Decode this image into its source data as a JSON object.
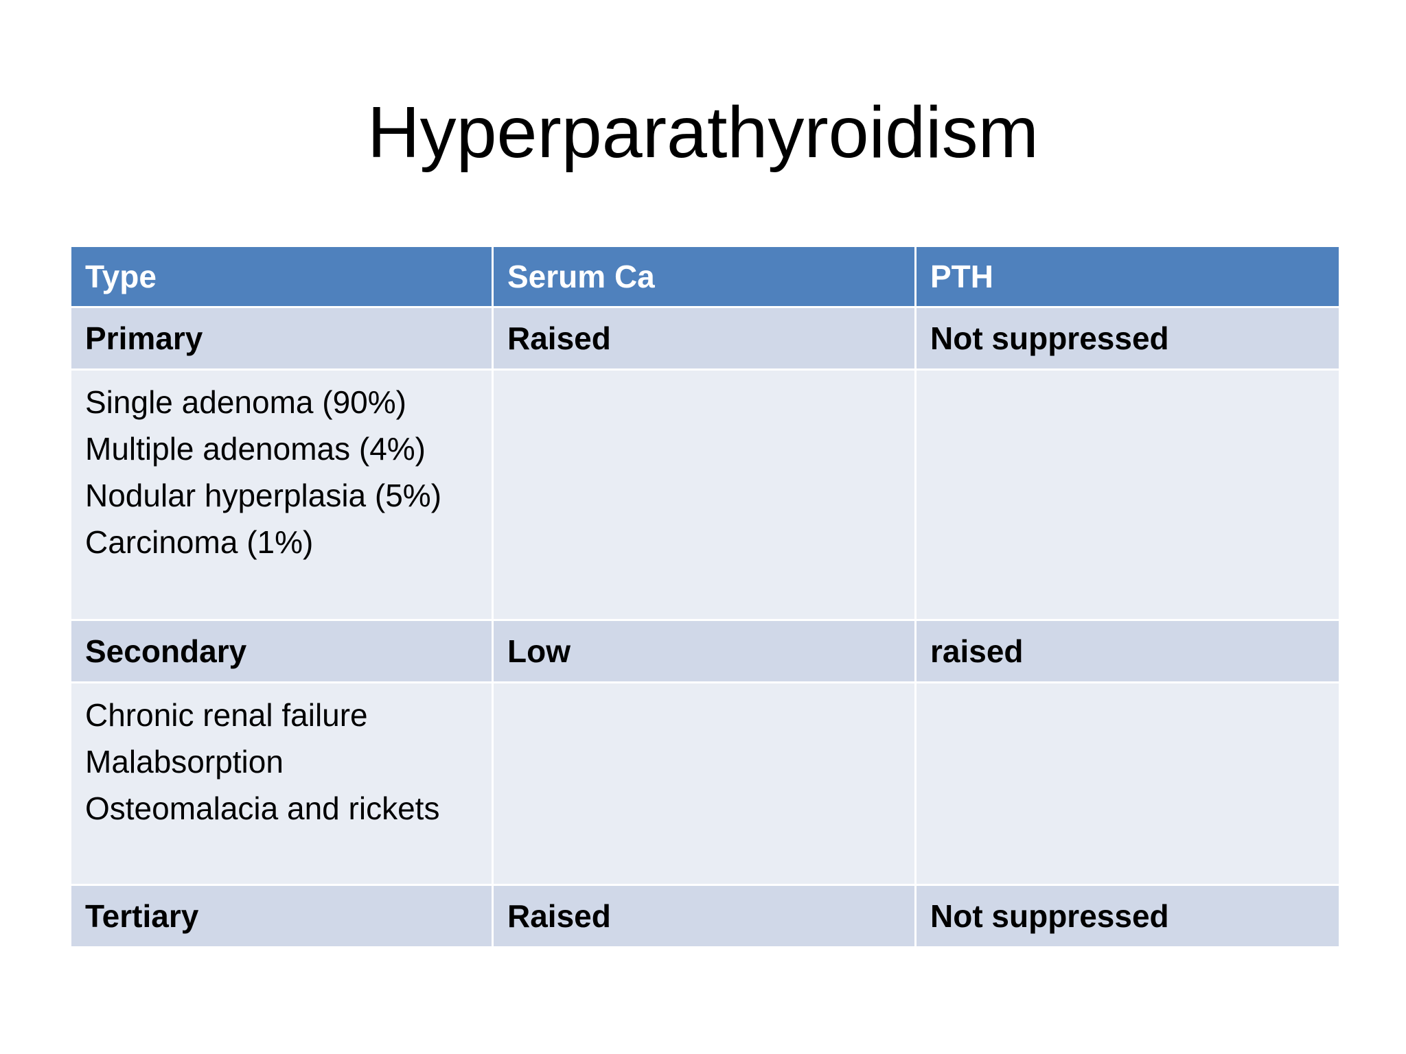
{
  "title": "Hyperparathyroidism",
  "table": {
    "header": [
      "Type",
      "Serum Ca",
      "PTH"
    ],
    "groups": [
      {
        "type": "Primary",
        "serum_ca": "Raised",
        "pth": "Not suppressed",
        "causes": [
          "Single adenoma (90%)",
          "Multiple adenomas (4%)",
          "Nodular hyperplasia (5%)",
          "Carcinoma (1%)"
        ]
      },
      {
        "type": "Secondary",
        "serum_ca": "Low",
        "pth": "raised",
        "causes": [
          "Chronic renal failure",
          "Malabsorption",
          "Osteomalacia and rickets"
        ]
      },
      {
        "type": "Tertiary",
        "serum_ca": "Raised",
        "pth": "Not suppressed"
      }
    ]
  }
}
